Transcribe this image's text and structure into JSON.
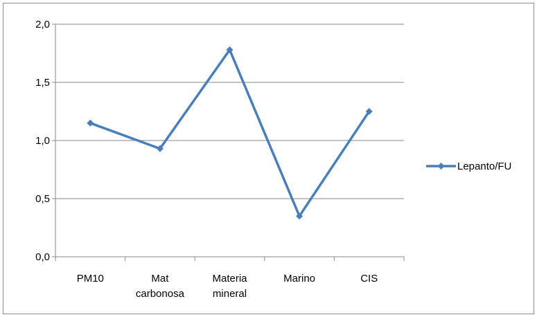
{
  "chart_data": {
    "type": "line",
    "title": "",
    "xlabel": "",
    "ylabel": "",
    "categories": [
      [
        "PM10"
      ],
      [
        "Mat",
        "carbonosa"
      ],
      [
        "Materia",
        "mineral"
      ],
      [
        "Marino"
      ],
      [
        "CIS"
      ]
    ],
    "series": [
      {
        "name": "Lepanto/FU",
        "values": [
          1.15,
          0.93,
          1.78,
          0.35,
          1.25
        ],
        "color": "#4a7ebb"
      }
    ],
    "ylim": [
      0,
      2.0
    ],
    "yticks": [
      "0,0",
      "0,5",
      "1,0",
      "1,5",
      "2,0"
    ],
    "ytick_values": [
      0,
      0.5,
      1.0,
      1.5,
      2.0
    ],
    "grid": true,
    "legend_position": "right",
    "marker": "diamond"
  }
}
